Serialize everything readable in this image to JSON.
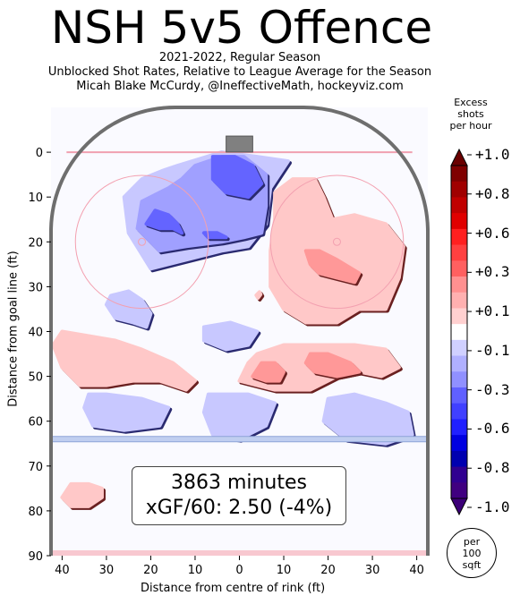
{
  "header": {
    "title": "NSH 5v5 Offence",
    "subtitle_lines": [
      "2021-2022, Regular Season",
      "Unblocked Shot Rates, Relative to League Average for the Season",
      "Micah Blake McCurdy, @IneffectiveMath, hockeyviz.com"
    ]
  },
  "summary": {
    "minutes": "3863 minutes",
    "xgf": "xGF/60: 2.50 (-4%)"
  },
  "colorbar": {
    "title_lines": [
      "Excess",
      "shots",
      "per hour"
    ],
    "tick_labels": [
      "+1.0",
      "+0.8",
      "+0.6",
      "+0.3",
      "+0.1",
      "-0.1",
      "-0.3",
      "-0.6",
      "-0.8",
      "-1.0"
    ],
    "tick_values": [
      1.0,
      0.8,
      0.6,
      0.3,
      0.1,
      -0.1,
      -0.3,
      -0.6,
      -0.8,
      -1.0
    ],
    "colors": [
      "#7f0000",
      "#a00000",
      "#c00000",
      "#e00000",
      "#ff2020",
      "#ff4040",
      "#ff6060",
      "#ff9090",
      "#ffb0b0",
      "#ffd0d0",
      "#ffffff",
      "#d0d0ff",
      "#b0b0ff",
      "#9090ff",
      "#6060ff",
      "#4040ff",
      "#2020ff",
      "#0000e0",
      "#0000b0",
      "#300090",
      "#400080"
    ]
  },
  "badge": {
    "lines": [
      "per",
      "100",
      "sqft"
    ]
  },
  "chart_data": {
    "type": "heatmap",
    "xlabel": "Distance from centre of rink (ft)",
    "ylabel": "Distance from goal line (ft)",
    "xlim": [
      42.5,
      -42.5
    ],
    "ylim": [
      90,
      -10
    ],
    "x_ticks": [
      40,
      30,
      20,
      10,
      0,
      10,
      20,
      30,
      40
    ],
    "x_tick_values": [
      40,
      30,
      20,
      10,
      0,
      -10,
      -20,
      -30,
      -40
    ],
    "y_ticks": [
      0,
      10,
      20,
      30,
      40,
      50,
      60,
      70,
      80,
      90
    ],
    "faceoff_circles": [
      {
        "x": 22,
        "y": 20,
        "r": 15
      },
      {
        "x": -22,
        "y": 20,
        "r": 15
      }
    ],
    "blue_line_y": 64,
    "contour_regions": [
      {
        "level": -0.1,
        "color": "#c8c8ff",
        "points": [
          [
            14,
            3
          ],
          [
            4,
            0
          ],
          [
            -4,
            1
          ],
          [
            -11,
            2
          ],
          [
            -7,
            8
          ],
          [
            -6,
            16
          ],
          [
            -2,
            21
          ],
          [
            4,
            22
          ],
          [
            12,
            24
          ],
          [
            20,
            26
          ],
          [
            25,
            18
          ],
          [
            26,
            10
          ],
          [
            22,
            6
          ],
          [
            17,
            4
          ]
        ]
      },
      {
        "level": -0.3,
        "color": "#a0a0ff",
        "points": [
          [
            10,
            3
          ],
          [
            4,
            1
          ],
          [
            -1,
            1
          ],
          [
            -6,
            5
          ],
          [
            -6,
            12
          ],
          [
            -5,
            18
          ],
          [
            -1,
            19
          ],
          [
            4,
            20
          ],
          [
            12,
            21
          ],
          [
            18,
            22
          ],
          [
            23,
            17
          ],
          [
            22,
            11
          ],
          [
            16,
            8
          ],
          [
            13,
            6
          ]
        ]
      },
      {
        "level": -0.6,
        "color": "#6464ff",
        "points": [
          [
            6,
            1
          ],
          [
            1,
            1
          ],
          [
            -3,
            3
          ],
          [
            -5,
            7
          ],
          [
            -2,
            10
          ],
          [
            3,
            9
          ],
          [
            6,
            6
          ]
        ]
      },
      {
        "level": -0.6,
        "color": "#6464ff",
        "points": [
          [
            19,
            13
          ],
          [
            16,
            14
          ],
          [
            14,
            16
          ],
          [
            13,
            18
          ],
          [
            15,
            17
          ],
          [
            18,
            17
          ],
          [
            21,
            16
          ]
        ]
      },
      {
        "level": -0.6,
        "color": "#6464ff",
        "points": [
          [
            8,
            18
          ],
          [
            5,
            18
          ],
          [
            3,
            19
          ],
          [
            7,
            19
          ]
        ]
      },
      {
        "level": -0.1,
        "color": "#c8c8ff",
        "points": [
          [
            29,
            32
          ],
          [
            25,
            31
          ],
          [
            22,
            33
          ],
          [
            20,
            36
          ],
          [
            21,
            39
          ],
          [
            24,
            38
          ],
          [
            28,
            37
          ],
          [
            30,
            34
          ]
        ]
      },
      {
        "level": -0.1,
        "color": "#c8c8ff",
        "points": [
          [
            8,
            39
          ],
          [
            2,
            38
          ],
          [
            -4,
            40
          ],
          [
            -2,
            43
          ],
          [
            3,
            44
          ],
          [
            8,
            42
          ]
        ]
      },
      {
        "level": -0.1,
        "color": "#c8c8ff",
        "points": [
          [
            34,
            54
          ],
          [
            30,
            54
          ],
          [
            22,
            55
          ],
          [
            16,
            57
          ],
          [
            18,
            61
          ],
          [
            26,
            62
          ],
          [
            33,
            61
          ],
          [
            35,
            57
          ]
        ]
      },
      {
        "level": -0.1,
        "color": "#c8c8ff",
        "points": [
          [
            7,
            54
          ],
          [
            -2,
            54
          ],
          [
            -8,
            56
          ],
          [
            -6,
            61
          ],
          [
            0,
            64
          ],
          [
            6,
            63
          ],
          [
            8,
            58
          ]
        ]
      },
      {
        "level": -0.1,
        "color": "#c8c8ff",
        "points": [
          [
            -20,
            55
          ],
          [
            -26,
            54
          ],
          [
            -33,
            56
          ],
          [
            -38,
            58
          ],
          [
            -39,
            63
          ],
          [
            -33,
            65
          ],
          [
            -24,
            64
          ],
          [
            -19,
            60
          ]
        ]
      },
      {
        "level": 0.1,
        "color": "#ffc8c8",
        "points": [
          [
            -8,
            9
          ],
          [
            -12,
            6
          ],
          [
            -17,
            6
          ],
          [
            -19,
            10
          ],
          [
            -21,
            15
          ],
          [
            -26,
            14
          ],
          [
            -33,
            16
          ],
          [
            -37,
            21
          ],
          [
            -36,
            28
          ],
          [
            -33,
            35
          ],
          [
            -27,
            35
          ],
          [
            -22,
            38
          ],
          [
            -15,
            38
          ],
          [
            -10,
            35
          ],
          [
            -7,
            30
          ],
          [
            -7,
            22
          ],
          [
            -8,
            15
          ]
        ]
      },
      {
        "level": 0.3,
        "color": "#ff9898",
        "points": [
          [
            -15,
            22
          ],
          [
            -18,
            22
          ],
          [
            -22,
            24
          ],
          [
            -27,
            27
          ],
          [
            -26,
            29
          ],
          [
            -22,
            28
          ],
          [
            -18,
            27
          ],
          [
            -16,
            25
          ]
        ]
      },
      {
        "level": 0.1,
        "color": "#ffc8c8",
        "points": [
          [
            -4,
            45
          ],
          [
            -10,
            43
          ],
          [
            -18,
            43
          ],
          [
            -26,
            43
          ],
          [
            -33,
            44
          ],
          [
            -36,
            48
          ],
          [
            -32,
            50
          ],
          [
            -27,
            49
          ],
          [
            -22,
            50
          ],
          [
            -16,
            53
          ],
          [
            -8,
            53
          ],
          [
            0,
            51
          ],
          [
            -2,
            47
          ]
        ]
      },
      {
        "level": 0.3,
        "color": "#ff9898",
        "points": [
          [
            -5,
            47
          ],
          [
            -8,
            47
          ],
          [
            -10,
            49
          ],
          [
            -9,
            51
          ],
          [
            -6,
            51
          ],
          [
            -3,
            50
          ]
        ]
      },
      {
        "level": 0.3,
        "color": "#ff9898",
        "points": [
          [
            -16,
            45
          ],
          [
            -20,
            45
          ],
          [
            -25,
            47
          ],
          [
            -27,
            49
          ],
          [
            -22,
            50
          ],
          [
            -17,
            49
          ],
          [
            -15,
            47
          ]
        ]
      },
      {
        "level": 0.1,
        "color": "#ffc8c8",
        "points": [
          [
            40,
            40
          ],
          [
            34,
            41
          ],
          [
            28,
            42
          ],
          [
            22,
            44
          ],
          [
            15,
            47
          ],
          [
            10,
            51
          ],
          [
            12,
            53
          ],
          [
            18,
            51
          ],
          [
            24,
            51
          ],
          [
            30,
            52
          ],
          [
            36,
            52
          ],
          [
            40,
            48
          ],
          [
            42,
            43
          ]
        ]
      },
      {
        "level": 0.1,
        "color": "#ffc8c8",
        "points": [
          [
            38,
            74
          ],
          [
            34,
            74
          ],
          [
            31,
            75
          ],
          [
            31,
            77
          ],
          [
            34,
            79
          ],
          [
            38,
            79
          ],
          [
            40,
            77
          ]
        ]
      },
      {
        "level": 0.1,
        "color": "#ffc8c8",
        "points": [
          [
            -4.5,
            31.2
          ],
          [
            -4.8,
            31.7
          ],
          [
            -4.2,
            32.5
          ],
          [
            -3.8,
            31.9
          ]
        ]
      }
    ]
  }
}
